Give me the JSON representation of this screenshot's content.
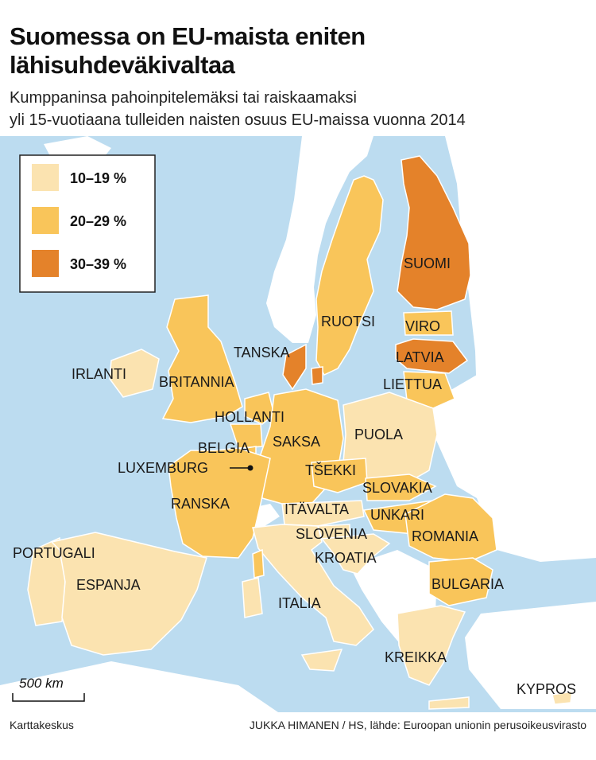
{
  "title_line1": "Suomessa on EU-maista eniten",
  "title_line2": "lähisuhdeväkivaltaa",
  "subtitle_line1": "Kumppaninsa pahoinpitelemäksi tai raiskaamaksi",
  "subtitle_line2": "yli 15-vuotiaana tulleiden naisten osuus EU-maissa vuonna 2014",
  "legend": [
    {
      "label": "10–19 %",
      "color": "#fbe3b0"
    },
    {
      "label": "20–29 %",
      "color": "#f9c55a"
    },
    {
      "label": "30–39 %",
      "color": "#e4822a"
    }
  ],
  "colors": {
    "sea": "#bcdcf0",
    "non_eu_land": "#ffffff",
    "border": "#ffffff"
  },
  "countries": {
    "suomi": {
      "label": "SUOMI",
      "category": "30–39 %"
    },
    "ruotsi": {
      "label": "RUOTSI",
      "category": "20–29 %"
    },
    "tanska": {
      "label": "TANSKA",
      "category": "30–39 %"
    },
    "viro": {
      "label": "VIRO",
      "category": "20–29 %"
    },
    "latvia": {
      "label": "LATVIA",
      "category": "30–39 %"
    },
    "liettua": {
      "label": "LIETTUA",
      "category": "20–29 %"
    },
    "irlanti": {
      "label": "IRLANTI",
      "category": "10–19 %"
    },
    "britannia": {
      "label": "BRITANNIA",
      "category": "20–29 %"
    },
    "hollanti": {
      "label": "HOLLANTI",
      "category": "20–29 %"
    },
    "belgia": {
      "label": "BELGIA",
      "category": "20–29 %"
    },
    "luxemburg": {
      "label": "LUXEMBURG",
      "category": "20–29 %"
    },
    "saksa": {
      "label": "SAKSA",
      "category": "20–29 %"
    },
    "puola": {
      "label": "PUOLA",
      "category": "10–19 %"
    },
    "tsekki": {
      "label": "TŠEKKI",
      "category": "20–29 %"
    },
    "slovakia": {
      "label": "SLOVAKIA",
      "category": "20–29 %"
    },
    "ranska": {
      "label": "RANSKA",
      "category": "20–29 %"
    },
    "itavalta": {
      "label": "ITÄVALTA",
      "category": "10–19 %"
    },
    "unkari": {
      "label": "UNKARI",
      "category": "20–29 %"
    },
    "slovenia": {
      "label": "SLOVENIA",
      "category": "10–19 %"
    },
    "romania": {
      "label": "ROMANIA",
      "category": "20–29 %"
    },
    "kroatia": {
      "label": "KROATIA",
      "category": "10–19 %"
    },
    "portugali": {
      "label": "PORTUGALI",
      "category": "10–19 %"
    },
    "espanja": {
      "label": "ESPANJA",
      "category": "10–19 %"
    },
    "italia": {
      "label": "ITALIA",
      "category": "10–19 %"
    },
    "bulgaria": {
      "label": "BULGARIA",
      "category": "20–29 %"
    },
    "kreikka": {
      "label": "KREIKKA",
      "category": "10–19 %"
    },
    "kypros": {
      "label": "KYPROS",
      "category": "10–19 %"
    }
  },
  "scale": {
    "label": "500 km"
  },
  "footer": {
    "left": "Karttakeskus",
    "right": "JUKKA HIMANEN / HS, lähde: Euroopan unionin perusoikeusvirasto"
  }
}
